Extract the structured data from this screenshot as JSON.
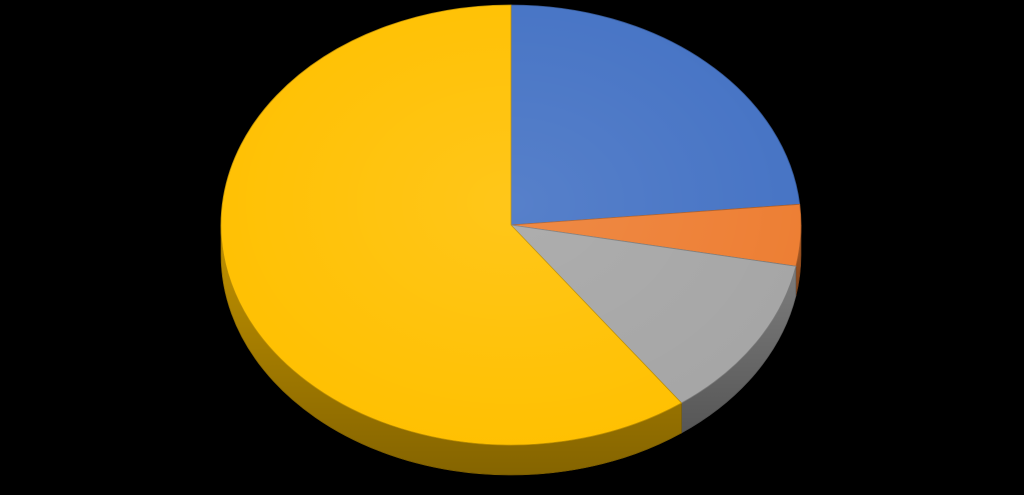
{
  "chart_data": {
    "type": "pie",
    "style": "3d",
    "title": "",
    "legend": "none",
    "data_labels": "none",
    "start_angle_deg": 0,
    "direction": "clockwise",
    "slices": [
      {
        "value": 23.5,
        "color": "#4472C4"
      },
      {
        "value": 4.5,
        "color": "#ED7D31"
      },
      {
        "value": 12.0,
        "color": "#A5A5A5"
      },
      {
        "value": 60.0,
        "color": "#FFC000"
      }
    ]
  }
}
